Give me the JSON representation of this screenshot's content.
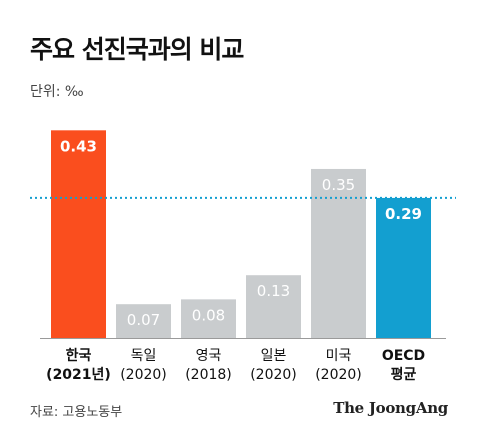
{
  "chart_data": {
    "type": "bar",
    "title": "주요 선진국과의 비교",
    "unit_label": "단위: ‰",
    "categories": [
      {
        "name": "한국",
        "year": "(2021년)"
      },
      {
        "name": "독일",
        "year": "(2020)"
      },
      {
        "name": "영국",
        "year": "(2018)"
      },
      {
        "name": "일본",
        "year": "(2020)"
      },
      {
        "name": "미국",
        "year": "(2020)"
      },
      {
        "name": "OECD",
        "year": "평균"
      }
    ],
    "values": [
      0.43,
      0.07,
      0.08,
      0.13,
      0.35,
      0.29
    ],
    "value_labels": [
      "0.43",
      "0.07",
      "0.08",
      "0.13",
      "0.35",
      "0.29"
    ],
    "bar_colors": [
      "#fa4e1e",
      "#c9ccce",
      "#c9ccce",
      "#c9ccce",
      "#c9ccce",
      "#139fd0"
    ],
    "emphasized": [
      true,
      false,
      false,
      false,
      false,
      true
    ],
    "reference_line": {
      "value": 0.29,
      "color": "#139fd0",
      "style": "dotted"
    },
    "ylim": [
      0,
      0.47
    ],
    "grid": false
  },
  "footer": {
    "source": "자료: 고용노동부",
    "logo": "The JoongAng"
  }
}
